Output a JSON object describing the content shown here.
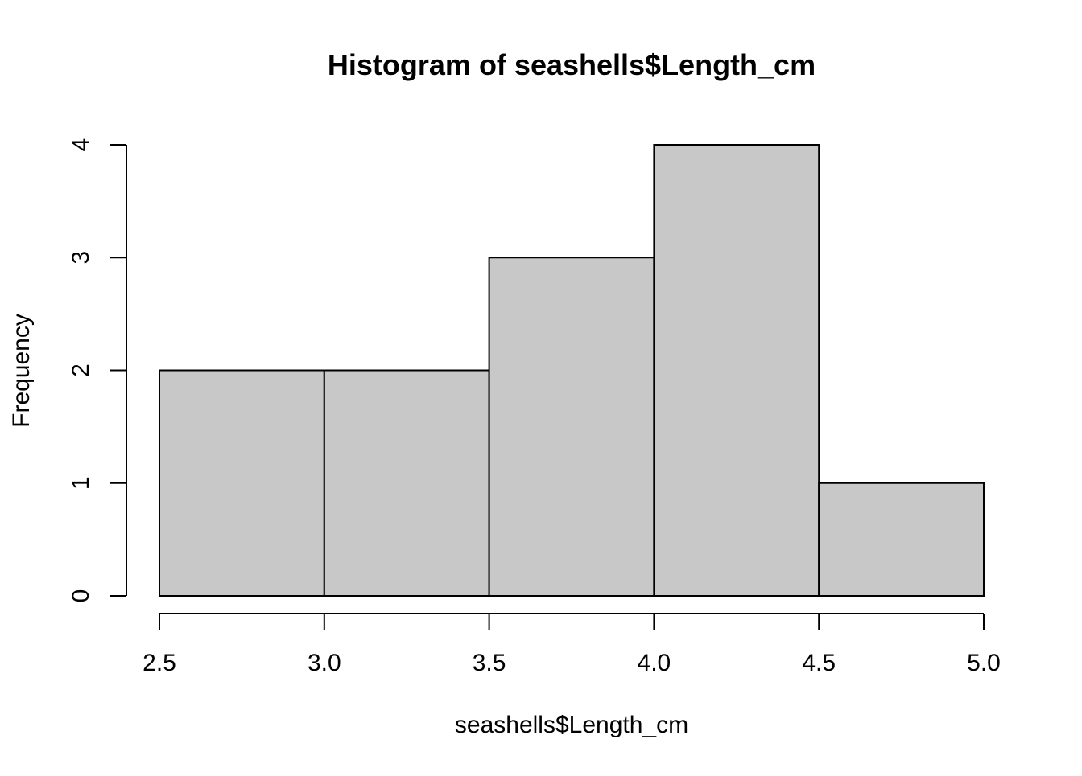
{
  "chart_data": {
    "type": "histogram",
    "title": "Histogram of seashells$Length_cm",
    "xlabel": "seashells$Length_cm",
    "ylabel": "Frequency",
    "bins": [
      {
        "start": 2.5,
        "end": 3.0,
        "count": 2
      },
      {
        "start": 3.0,
        "end": 3.5,
        "count": 2
      },
      {
        "start": 3.5,
        "end": 4.0,
        "count": 3
      },
      {
        "start": 4.0,
        "end": 4.5,
        "count": 4
      },
      {
        "start": 4.5,
        "end": 5.0,
        "count": 1
      }
    ],
    "xlim": [
      2.5,
      5.0
    ],
    "ylim": [
      0,
      4
    ],
    "x_ticks": [
      "2.5",
      "3.0",
      "3.5",
      "4.0",
      "4.5",
      "5.0"
    ],
    "y_ticks": [
      "0",
      "1",
      "2",
      "3",
      "4"
    ],
    "bar_fill": "#c8c8c8",
    "bar_stroke": "#000000",
    "grid": false,
    "legend": "none"
  }
}
